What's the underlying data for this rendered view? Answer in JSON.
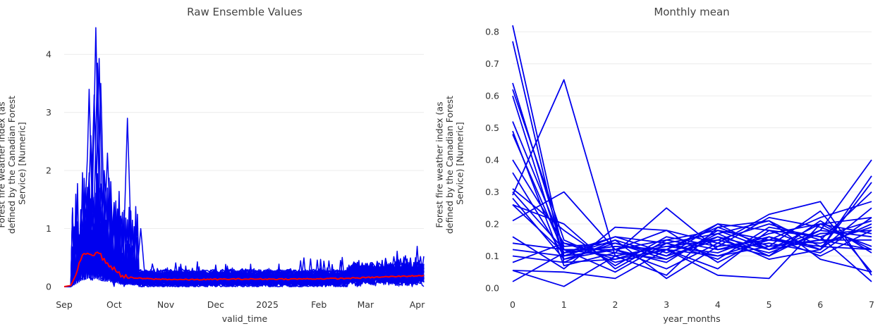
{
  "chart_data": [
    {
      "type": "line",
      "title": "Raw Ensemble Values",
      "xlabel": "valid_time",
      "ylabel_lines": [
        "Forest fire weather index (as",
        "defined by the Canadian Forest",
        "Service) [Numeric]"
      ],
      "x_ticks": [
        "Sep",
        "Oct",
        "Nov",
        "Dec",
        "2025",
        "Feb",
        "Mar",
        "Apr"
      ],
      "x_tick_dates": [
        "2024-09-01",
        "2024-10-01",
        "2024-11-01",
        "2024-12-01",
        "2025-01-01",
        "2025-02-01",
        "2025-03-01",
        "2025-04-01"
      ],
      "xlim": [
        "2024-09-01",
        "2025-04-05"
      ],
      "y_ticks": [
        "0",
        "1",
        "2",
        "3",
        "4"
      ],
      "ylim": [
        0,
        4.5
      ],
      "grid": true,
      "ensemble_color": "#0000ee",
      "mean_color": "#ff0000",
      "ensemble_members": 51,
      "mean_series": [
        {
          "date": "2024-09-01",
          "value": 0.0
        },
        {
          "date": "2024-09-05",
          "value": 0.02
        },
        {
          "date": "2024-09-08",
          "value": 0.2
        },
        {
          "date": "2024-09-12",
          "value": 0.55
        },
        {
          "date": "2024-09-15",
          "value": 0.6
        },
        {
          "date": "2024-09-18",
          "value": 0.55
        },
        {
          "date": "2024-09-21",
          "value": 0.62
        },
        {
          "date": "2024-09-25",
          "value": 0.45
        },
        {
          "date": "2024-09-29",
          "value": 0.35
        },
        {
          "date": "2024-10-05",
          "value": 0.2
        },
        {
          "date": "2024-10-12",
          "value": 0.15
        },
        {
          "date": "2024-10-25",
          "value": 0.13
        },
        {
          "date": "2024-11-15",
          "value": 0.12
        },
        {
          "date": "2024-12-15",
          "value": 0.13
        },
        {
          "date": "2025-01-15",
          "value": 0.13
        },
        {
          "date": "2025-02-15",
          "value": 0.14
        },
        {
          "date": "2025-03-15",
          "value": 0.17
        },
        {
          "date": "2025-04-04",
          "value": 0.19
        }
      ]
    },
    {
      "type": "line",
      "title": "Monthly mean",
      "xlabel": "year_months",
      "ylabel_lines": [
        "Forest fire weather index (as",
        "defined by the Canadian Forest",
        "Service) [Numeric]"
      ],
      "x": [
        0,
        1,
        2,
        3,
        4,
        5,
        6,
        7
      ],
      "x_ticks": [
        "0",
        "1",
        "2",
        "3",
        "4",
        "5",
        "6",
        "7"
      ],
      "y_ticks": [
        "0.0",
        "0.1",
        "0.2",
        "0.3",
        "0.4",
        "0.5",
        "0.6",
        "0.7",
        "0.8"
      ],
      "ylim": [
        0,
        0.82
      ],
      "grid": true,
      "series_color": "#0000ee",
      "series": [
        {
          "values": [
            0.82,
            0.1,
            0.12,
            0.15,
            0.18,
            0.12,
            0.2,
            0.22
          ]
        },
        {
          "values": [
            0.77,
            0.08,
            0.15,
            0.1,
            0.2,
            0.18,
            0.12,
            0.35
          ]
        },
        {
          "values": [
            0.64,
            0.12,
            0.1,
            0.13,
            0.15,
            0.2,
            0.15,
            0.3
          ]
        },
        {
          "values": [
            0.62,
            0.15,
            0.08,
            0.12,
            0.1,
            0.15,
            0.22,
            0.27
          ]
        },
        {
          "values": [
            0.6,
            0.09,
            0.12,
            0.18,
            0.14,
            0.1,
            0.18,
            0.4
          ]
        },
        {
          "values": [
            0.52,
            0.13,
            0.14,
            0.09,
            0.17,
            0.21,
            0.13,
            0.12
          ]
        },
        {
          "values": [
            0.49,
            0.07,
            0.11,
            0.25,
            0.12,
            0.16,
            0.1,
            0.18
          ]
        },
        {
          "values": [
            0.48,
            0.11,
            0.13,
            0.12,
            0.19,
            0.13,
            0.24,
            0.05
          ]
        },
        {
          "values": [
            0.4,
            0.14,
            0.09,
            0.14,
            0.09,
            0.19,
            0.16,
            0.21
          ]
        },
        {
          "values": [
            0.36,
            0.1,
            0.16,
            0.11,
            0.16,
            0.09,
            0.12,
            0.33
          ]
        },
        {
          "values": [
            0.31,
            0.18,
            0.07,
            0.16,
            0.13,
            0.22,
            0.19,
            0.13
          ]
        },
        {
          "values": [
            0.3,
            0.12,
            0.12,
            0.08,
            0.18,
            0.15,
            0.14,
            0.19
          ]
        },
        {
          "values": [
            0.29,
            0.65,
            0.1,
            0.13,
            0.11,
            0.17,
            0.2,
            0.12
          ]
        },
        {
          "values": [
            0.28,
            0.09,
            0.14,
            0.1,
            0.15,
            0.11,
            0.17,
            0.18
          ]
        },
        {
          "values": [
            0.26,
            0.2,
            0.06,
            0.15,
            0.12,
            0.14,
            0.11,
            0.22
          ]
        },
        {
          "values": [
            0.26,
            0.11,
            0.13,
            0.12,
            0.2,
            0.12,
            0.15,
            0.15
          ]
        },
        {
          "values": [
            0.21,
            0.3,
            0.12,
            0.06,
            0.14,
            0.23,
            0.27,
            0.04
          ]
        },
        {
          "values": [
            0.16,
            0.06,
            0.19,
            0.18,
            0.08,
            0.16,
            0.12,
            0.25
          ]
        },
        {
          "values": [
            0.14,
            0.12,
            0.05,
            0.14,
            0.17,
            0.1,
            0.21,
            0.11
          ]
        },
        {
          "values": [
            0.12,
            0.1,
            0.15,
            0.03,
            0.13,
            0.15,
            0.13,
            0.2
          ]
        },
        {
          "values": [
            0.1,
            0.08,
            0.09,
            0.12,
            0.06,
            0.18,
            0.16,
            0.02
          ]
        },
        {
          "values": [
            0.08,
            0.14,
            0.11,
            0.09,
            0.16,
            0.12,
            0.18,
            0.16
          ]
        },
        {
          "values": [
            0.055,
            0.05,
            0.03,
            0.12,
            0.04,
            0.03,
            0.2,
            0.17
          ]
        },
        {
          "values": [
            0.055,
            0.005,
            0.1,
            0.04,
            0.19,
            0.21,
            0.09,
            0.05
          ]
        },
        {
          "values": [
            0.02,
            0.11,
            0.16,
            0.14,
            0.1,
            0.13,
            0.15,
            0.12
          ]
        }
      ]
    }
  ]
}
